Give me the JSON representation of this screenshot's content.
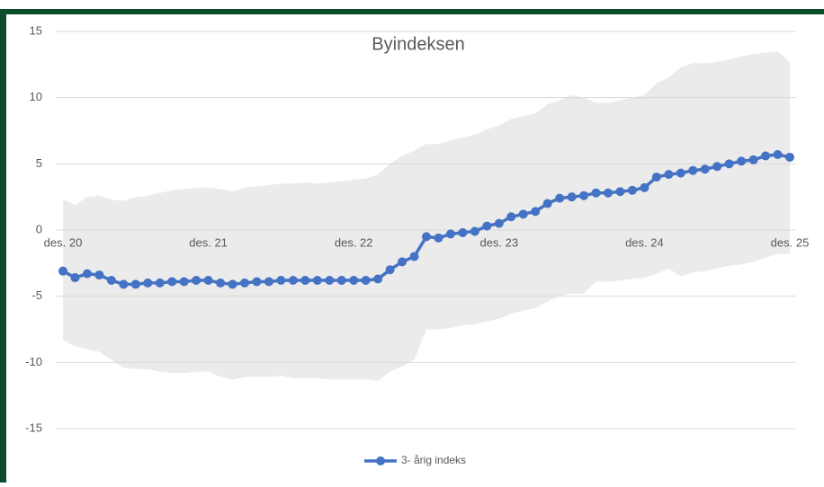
{
  "chart_data": {
    "type": "line",
    "title": "Byindeksen",
    "categories": [
      "des. 20",
      null,
      null,
      null,
      null,
      null,
      null,
      null,
      null,
      null,
      null,
      null,
      "des. 21",
      null,
      null,
      null,
      null,
      null,
      null,
      null,
      null,
      null,
      null,
      null,
      "des. 22",
      null,
      null,
      null,
      null,
      null,
      null,
      null,
      null,
      null,
      null,
      null,
      "des. 23",
      null,
      null,
      null,
      null,
      null,
      null,
      null,
      null,
      null,
      null,
      null,
      "des. 24",
      null,
      null,
      null,
      null,
      null,
      null,
      null,
      null,
      null,
      null,
      null,
      "des. 25"
    ],
    "series": [
      {
        "name": "3- årig indeks",
        "color": "#4472c4",
        "values": [
          -3.1,
          -3.6,
          -3.3,
          -3.4,
          -3.8,
          -4.1,
          -4.1,
          -4.0,
          -4.0,
          -3.9,
          -3.9,
          -3.8,
          -3.8,
          -4.0,
          -4.1,
          -4.0,
          -3.9,
          -3.9,
          -3.8,
          -3.8,
          -3.8,
          -3.8,
          -3.8,
          -3.8,
          -3.8,
          -3.8,
          -3.7,
          -3.0,
          -2.4,
          -2.0,
          -0.5,
          -0.6,
          -0.3,
          -0.2,
          -0.1,
          0.3,
          0.5,
          1.0,
          1.2,
          1.4,
          2.0,
          2.4,
          2.5,
          2.6,
          2.8,
          2.8,
          2.9,
          3.0,
          3.2,
          4.0,
          4.2,
          4.3,
          4.5,
          4.6,
          4.8,
          5.0,
          5.2,
          5.3,
          5.6,
          5.7,
          5.5
        ]
      }
    ],
    "band": {
      "color": "#ebebeb",
      "upper": [
        2.3,
        1.9,
        2.5,
        2.6,
        2.3,
        2.2,
        2.5,
        2.6,
        2.8,
        3.0,
        3.1,
        3.2,
        3.2,
        3.1,
        2.9,
        3.2,
        3.3,
        3.4,
        3.5,
        3.5,
        3.6,
        3.5,
        3.6,
        3.7,
        3.8,
        3.9,
        4.2,
        5.0,
        5.6,
        6.0,
        6.5,
        6.5,
        6.8,
        7.0,
        7.2,
        7.6,
        7.9,
        8.4,
        8.6,
        8.8,
        9.5,
        9.8,
        10.2,
        10.0,
        9.6,
        9.6,
        9.8,
        10.0,
        10.2,
        11.1,
        11.5,
        12.3,
        12.6,
        12.6,
        12.7,
        12.9,
        13.1,
        13.3,
        13.4,
        13.5,
        12.7
      ],
      "lower": [
        -8.3,
        -8.8,
        -9.0,
        -9.2,
        -9.8,
        -10.4,
        -10.5,
        -10.5,
        -10.7,
        -10.8,
        -10.8,
        -10.7,
        -10.7,
        -11.1,
        -11.3,
        -11.1,
        -11.1,
        -11.1,
        -11.0,
        -11.2,
        -11.2,
        -11.2,
        -11.3,
        -11.3,
        -11.3,
        -11.3,
        -11.4,
        -10.7,
        -10.3,
        -9.8,
        -7.5,
        -7.5,
        -7.4,
        -7.2,
        -7.1,
        -6.9,
        -6.7,
        -6.3,
        -6.1,
        -5.9,
        -5.4,
        -5.0,
        -4.8,
        -4.8,
        -3.9,
        -3.9,
        -3.8,
        -3.7,
        -3.6,
        -3.3,
        -2.9,
        -3.5,
        -3.2,
        -3.1,
        -2.9,
        -2.7,
        -2.6,
        -2.4,
        -2.1,
        -1.8,
        -1.8
      ]
    },
    "ylim": [
      -17,
      15
    ],
    "yticks": [
      -15,
      -10,
      -5,
      0,
      5,
      10,
      15
    ],
    "grid": true,
    "legend": "bottom"
  }
}
